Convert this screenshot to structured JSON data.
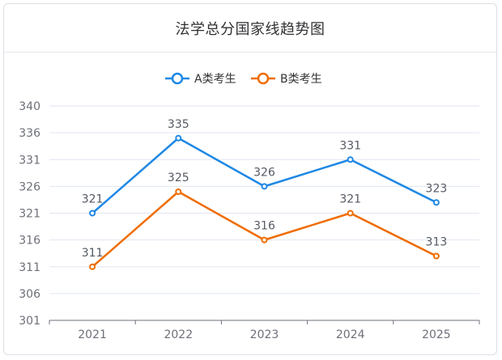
{
  "card": {
    "title": "法学总分国家线趋势图"
  },
  "chart_data": {
    "type": "line",
    "title": "法学总分国家线趋势图",
    "categories": [
      "2021",
      "2022",
      "2023",
      "2024",
      "2025"
    ],
    "series": [
      {
        "name": "A类考生",
        "color": "#1e88e5",
        "values": [
          321,
          335,
          326,
          331,
          323
        ]
      },
      {
        "name": "B类考生",
        "color": "#ef6c00",
        "values": [
          311,
          325,
          316,
          321,
          313
        ]
      }
    ],
    "y_ticks": [
      301,
      306,
      311,
      316,
      321,
      326,
      331,
      336,
      340
    ],
    "ylim": [
      301,
      340
    ],
    "grid": true,
    "legend": "top-center",
    "data_labels": true
  }
}
